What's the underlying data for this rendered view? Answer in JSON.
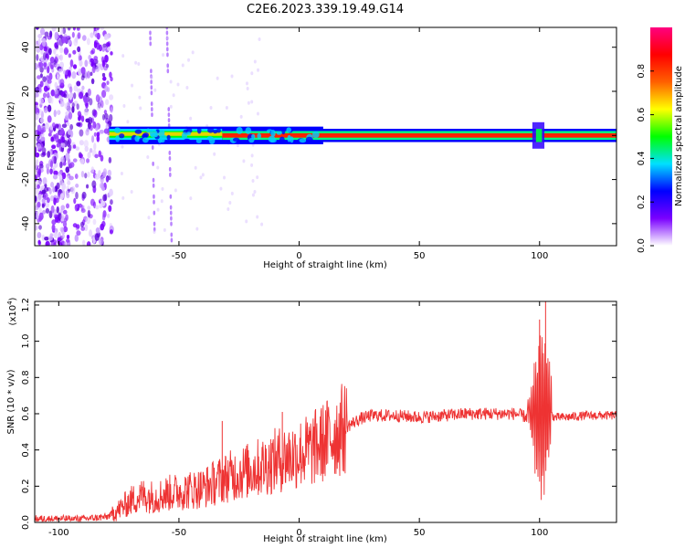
{
  "title": "C2E6.2023.339.19.49.G14",
  "chart_data": [
    {
      "type": "heatmap",
      "title": "C2E6.2023.339.19.49.G14",
      "xlabel": "Height of straight line (km)",
      "ylabel": "Frequency (Hz)",
      "xlim": [
        -110,
        132
      ],
      "ylim": [
        -50,
        49
      ],
      "xticks": [
        "-100",
        "-50",
        "0",
        "50",
        "100"
      ],
      "xtick_values": [
        -100,
        -50,
        0,
        50,
        100
      ],
      "yticks": [
        "-40",
        "-20",
        "0",
        "20",
        "40"
      ],
      "ytick_values": [
        -40,
        -20,
        0,
        20,
        40
      ],
      "carrier_frequency_hz": 0,
      "noise_region_km": [
        -110,
        -78
      ],
      "colorbar": {
        "label": "Normalized spectral amplitude",
        "range": [
          0.0,
          1.0
        ],
        "ticks": [
          "0.0",
          "0.2",
          "0.4",
          "0.6",
          "0.8"
        ],
        "tick_values": [
          0.0,
          0.2,
          0.4,
          0.6,
          0.8
        ],
        "colormap": [
          "#ffffff",
          "#7a00ff",
          "#0000ff",
          "#00e0ff",
          "#00ff00",
          "#ffff00",
          "#ff6000",
          "#ff0000",
          "#ff0080"
        ]
      }
    },
    {
      "type": "line",
      "xlabel": "Height of straight line (km)",
      "ylabel": "SNR (10 * v/v)",
      "multiplier": "(x10",
      "multiplier_exp": "4",
      "multiplier_close": ")",
      "xlim": [
        -110,
        132
      ],
      "ylim": [
        0,
        1.22
      ],
      "xticks": [
        "-100",
        "-50",
        "0",
        "50",
        "100"
      ],
      "xtick_values": [
        -100,
        -50,
        0,
        50,
        100
      ],
      "yticks": [
        "0.0",
        "0.2",
        "0.4",
        "0.6",
        "0.8",
        "1.0",
        "1.2"
      ],
      "ytick_values": [
        0,
        0.2,
        0.4,
        0.6,
        0.8,
        1.0,
        1.2
      ],
      "color": "#ee3333",
      "series": [
        {
          "name": "SNR",
          "x": [
            -110,
            -100,
            -90,
            -80,
            -75,
            -70,
            -65,
            -60,
            -55,
            -50,
            -45,
            -40,
            -35,
            -30,
            -25,
            -20,
            -15,
            -10,
            -5,
            0,
            5,
            10,
            15,
            20,
            25,
            30,
            35,
            40,
            50,
            60,
            70,
            80,
            90,
            95,
            98,
            100,
            101,
            102,
            103,
            104,
            106,
            110,
            120,
            132
          ],
          "y": [
            0.02,
            0.02,
            0.02,
            0.03,
            0.07,
            0.12,
            0.15,
            0.14,
            0.16,
            0.17,
            0.18,
            0.19,
            0.22,
            0.25,
            0.27,
            0.29,
            0.31,
            0.34,
            0.36,
            0.38,
            0.4,
            0.44,
            0.49,
            0.53,
            0.57,
            0.59,
            0.59,
            0.59,
            0.58,
            0.59,
            0.6,
            0.6,
            0.6,
            0.58,
            0.5,
            0.65,
            0.4,
            0.9,
            0.3,
            0.62,
            0.58,
            0.58,
            0.59,
            0.59
          ]
        }
      ],
      "spikes": [
        {
          "x": -32,
          "y": 0.56
        },
        {
          "x": -7,
          "y": 0.61
        },
        {
          "x": 100,
          "y": 1.12
        },
        {
          "x": 102.5,
          "y": 1.22
        }
      ]
    }
  ]
}
